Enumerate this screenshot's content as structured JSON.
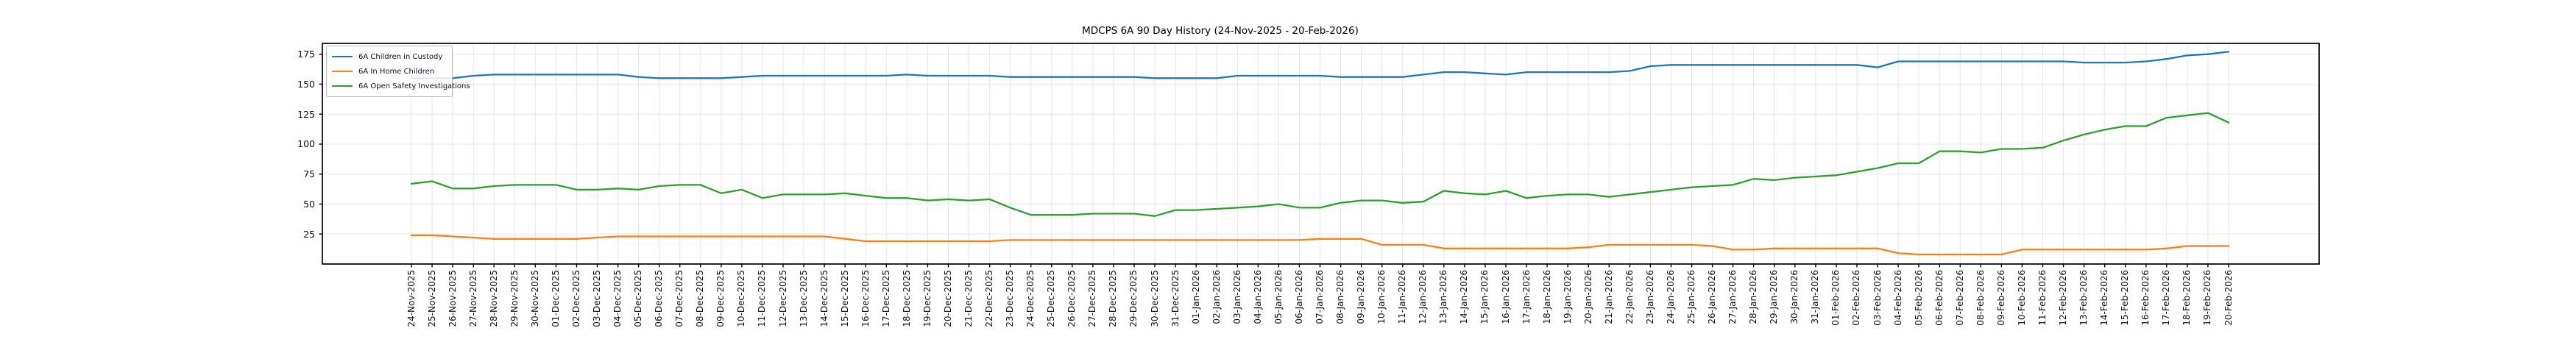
{
  "chart_data": {
    "type": "line",
    "title": "MDCPS 6A 90 Day History (24-Nov-2025 - 20-Feb-2026)",
    "xlabel": "",
    "ylabel": "",
    "grid": true,
    "legend_position": "upper-left",
    "ylim": [
      0,
      184
    ],
    "yticks": [
      25,
      50,
      75,
      100,
      125,
      150,
      175
    ],
    "x": [
      "24-Nov-2025",
      "25-Nov-2025",
      "26-Nov-2025",
      "27-Nov-2025",
      "28-Nov-2025",
      "29-Nov-2025",
      "30-Nov-2025",
      "01-Dec-2025",
      "02-Dec-2025",
      "03-Dec-2025",
      "04-Dec-2025",
      "05-Dec-2025",
      "06-Dec-2025",
      "07-Dec-2025",
      "08-Dec-2025",
      "09-Dec-2025",
      "10-Dec-2025",
      "11-Dec-2025",
      "12-Dec-2025",
      "13-Dec-2025",
      "14-Dec-2025",
      "15-Dec-2025",
      "16-Dec-2025",
      "17-Dec-2025",
      "18-Dec-2025",
      "19-Dec-2025",
      "20-Dec-2025",
      "21-Dec-2025",
      "22-Dec-2025",
      "23-Dec-2025",
      "24-Dec-2025",
      "25-Dec-2025",
      "26-Dec-2025",
      "27-Dec-2025",
      "28-Dec-2025",
      "29-Dec-2025",
      "30-Dec-2025",
      "31-Dec-2025",
      "01-Jan-2026",
      "02-Jan-2026",
      "03-Jan-2026",
      "04-Jan-2026",
      "05-Jan-2026",
      "06-Jan-2026",
      "07-Jan-2026",
      "08-Jan-2026",
      "09-Jan-2026",
      "10-Jan-2026",
      "11-Jan-2026",
      "12-Jan-2026",
      "13-Jan-2026",
      "14-Jan-2026",
      "15-Jan-2026",
      "16-Jan-2026",
      "17-Jan-2026",
      "18-Jan-2026",
      "19-Jan-2026",
      "20-Jan-2026",
      "21-Jan-2026",
      "22-Jan-2026",
      "23-Jan-2026",
      "24-Jan-2026",
      "25-Jan-2026",
      "26-Jan-2026",
      "27-Jan-2026",
      "28-Jan-2026",
      "29-Jan-2026",
      "30-Jan-2026",
      "31-Jan-2026",
      "01-Feb-2026",
      "02-Feb-2026",
      "03-Feb-2026",
      "04-Feb-2026",
      "05-Feb-2026",
      "06-Feb-2026",
      "07-Feb-2026",
      "08-Feb-2026",
      "09-Feb-2026",
      "10-Feb-2026",
      "11-Feb-2026",
      "12-Feb-2026",
      "13-Feb-2026",
      "14-Feb-2026",
      "15-Feb-2026",
      "16-Feb-2026",
      "17-Feb-2026",
      "18-Feb-2026",
      "19-Feb-2026",
      "20-Feb-2026"
    ],
    "series": [
      {
        "name": "6A Children in Custody",
        "color": "#1f77b4",
        "values": [
          155,
          155,
          155,
          157,
          158,
          158,
          158,
          158,
          158,
          158,
          158,
          156,
          155,
          155,
          155,
          155,
          156,
          157,
          157,
          157,
          157,
          157,
          157,
          157,
          158,
          157,
          157,
          157,
          157,
          156,
          156,
          156,
          156,
          156,
          156,
          156,
          155,
          155,
          155,
          155,
          157,
          157,
          157,
          157,
          157,
          156,
          156,
          156,
          156,
          158,
          160,
          160,
          159,
          158,
          160,
          160,
          160,
          160,
          160,
          161,
          165,
          166,
          166,
          166,
          166,
          166,
          166,
          166,
          166,
          166,
          166,
          164,
          169,
          169,
          169,
          169,
          169,
          169,
          169,
          169,
          169,
          168,
          168,
          168,
          169,
          171,
          174,
          175,
          177
        ]
      },
      {
        "name": "6A In Home Children",
        "color": "#ff7f0e",
        "values": [
          24,
          24,
          23,
          22,
          21,
          21,
          21,
          21,
          21,
          22,
          23,
          23,
          23,
          23,
          23,
          23,
          23,
          23,
          23,
          23,
          23,
          21,
          19,
          19,
          19,
          19,
          19,
          19,
          19,
          20,
          20,
          20,
          20,
          20,
          20,
          20,
          20,
          20,
          20,
          20,
          20,
          20,
          20,
          20,
          21,
          21,
          21,
          16,
          16,
          16,
          13,
          13,
          13,
          13,
          13,
          13,
          13,
          14,
          16,
          16,
          16,
          16,
          16,
          15,
          12,
          12,
          13,
          13,
          13,
          13,
          13,
          13,
          9,
          8,
          8,
          8,
          8,
          8,
          12,
          12,
          12,
          12,
          12,
          12,
          12,
          13,
          15,
          15,
          15
        ]
      },
      {
        "name": "6A Open Safety Investigations",
        "color": "#2ca02c",
        "values": [
          67,
          69,
          63,
          63,
          65,
          66,
          66,
          66,
          62,
          62,
          63,
          62,
          65,
          66,
          66,
          59,
          62,
          55,
          58,
          58,
          58,
          59,
          57,
          55,
          55,
          53,
          54,
          53,
          54,
          47,
          41,
          41,
          41,
          42,
          42,
          42,
          40,
          45,
          45,
          46,
          47,
          48,
          50,
          47,
          47,
          51,
          53,
          53,
          51,
          52,
          61,
          59,
          58,
          61,
          55,
          57,
          58,
          58,
          56,
          58,
          60,
          62,
          64,
          65,
          66,
          71,
          70,
          72,
          73,
          74,
          77,
          80,
          84,
          84,
          94,
          94,
          93,
          96,
          96,
          97,
          103,
          108,
          112,
          115,
          115,
          122,
          124,
          126,
          118
        ]
      }
    ]
  },
  "style": {
    "grid_color": "#e6e6e6",
    "frame_color": "#000000",
    "tick_color": "#000000",
    "text_color": "#111111",
    "background": "#ffffff"
  }
}
